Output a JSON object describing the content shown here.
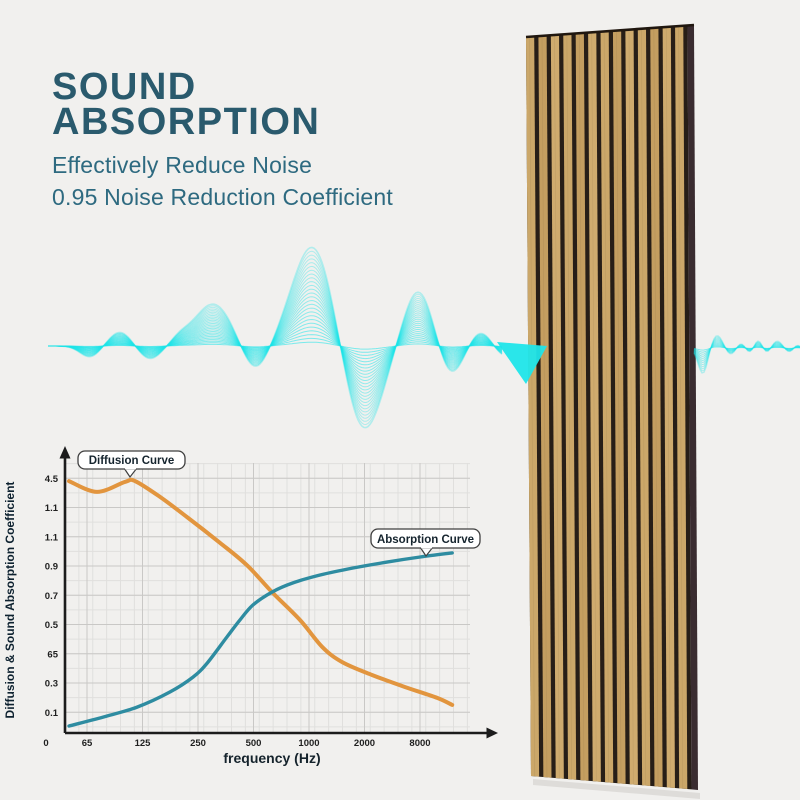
{
  "colors": {
    "bg": "#f1f0ee",
    "title": "#2a5a6d",
    "subtitle": "#2e6a80",
    "wave": "#1fe5e9",
    "wood": "#c9a466",
    "groove": "#271e17",
    "panel-edge": "#3a2c30",
    "curve-diffusion": "#e2953e",
    "curve-absorption": "#2e8ca1",
    "axis": "#1c1c1c"
  },
  "header": {
    "title_line1": "SOUND",
    "title_line2": "ABSORPTION",
    "subtitle_line1": "Effectively Reduce Noise",
    "subtitle_line2": "0.95 Noise Reduction Coefficient"
  },
  "panel": {
    "description": "wood slat acoustic panel, vertical oak slats with dark grooves, viewed in slight perspective",
    "slat_count": 13
  },
  "chart_data": {
    "type": "line",
    "title": "",
    "xlabel": "frequency (Hz)",
    "ylabel": "Diffusion & Sound Absorption Coefficient",
    "x_tick_labels": [
      "0",
      "65",
      "125",
      "250",
      "500",
      "1000",
      "2000",
      "8000"
    ],
    "y_tick_labels_top_to_bottom": [
      "4.5",
      "1.1",
      "1.1",
      "0.9",
      "0.7",
      "0.5",
      "65",
      "0.3",
      "0.1"
    ],
    "y_axis_note": "tick labels transcribed exactly as printed in source image",
    "grid": true,
    "legend": "callout boxes attached to each curve",
    "series": [
      {
        "name": "Diffusion Curve",
        "color": "#e2953e",
        "points_norm": [
          [
            0.01,
            0.933
          ],
          [
            0.079,
            0.893
          ],
          [
            0.148,
            0.93
          ],
          [
            0.173,
            0.933
          ],
          [
            0.235,
            0.874
          ],
          [
            0.301,
            0.8
          ],
          [
            0.383,
            0.704
          ],
          [
            0.449,
            0.622
          ],
          [
            0.511,
            0.522
          ],
          [
            0.58,
            0.419
          ],
          [
            0.635,
            0.319
          ],
          [
            0.684,
            0.263
          ],
          [
            0.758,
            0.215
          ],
          [
            0.84,
            0.17
          ],
          [
            0.919,
            0.13
          ],
          [
            0.956,
            0.104
          ]
        ]
      },
      {
        "name": "Absorption Curve",
        "color": "#2e8ca1",
        "points_norm": [
          [
            0.01,
            0.026
          ],
          [
            0.094,
            0.059
          ],
          [
            0.178,
            0.096
          ],
          [
            0.259,
            0.152
          ],
          [
            0.316,
            0.207
          ],
          [
            0.351,
            0.259
          ],
          [
            0.4,
            0.356
          ],
          [
            0.432,
            0.419
          ],
          [
            0.464,
            0.474
          ],
          [
            0.511,
            0.522
          ],
          [
            0.563,
            0.556
          ],
          [
            0.63,
            0.585
          ],
          [
            0.711,
            0.611
          ],
          [
            0.795,
            0.633
          ],
          [
            0.877,
            0.652
          ],
          [
            0.956,
            0.667
          ]
        ]
      }
    ],
    "coords_note": "points_norm are fractions of plot area: x 0=left axis to 1=right edge, y 0=x-axis baseline to 1=top"
  }
}
